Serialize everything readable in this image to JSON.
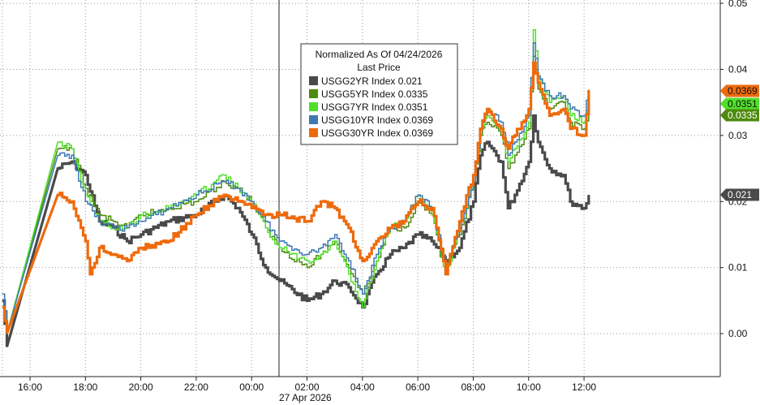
{
  "chart_data": {
    "type": "line",
    "title": "",
    "xlabel": "",
    "ylabel": "",
    "date_label": "27 Apr 2026",
    "x_ticks": [
      "16:00",
      "18:00",
      "20:00",
      "22:00",
      "00:00",
      "02:00",
      "04:00",
      "06:00",
      "08:00",
      "10:00",
      "12:00"
    ],
    "y_ticks": [
      "0.00",
      "0.01",
      "0.02",
      "0.03",
      "0.04",
      "0.05"
    ],
    "ylim": [
      -0.0065,
      0.0505
    ],
    "xlim": [
      "14:55",
      "27 Apr 16:55"
    ],
    "grid": true,
    "legend": {
      "placement": "top-center",
      "header1": "Normalized As Of 04/24/2026",
      "header2": "Last Price",
      "entries": [
        {
          "name": "USGG2YR Index",
          "value": "0.021",
          "color": "#4a4a4a"
        },
        {
          "name": "USGG5YR Index",
          "value": "0.0335",
          "color": "#4e8a0e"
        },
        {
          "name": "USGG7YR Index",
          "value": "0.0351",
          "color": "#4fe02a"
        },
        {
          "name": "USGG10YR Index",
          "value": "0.0369",
          "color": "#3f78b3"
        },
        {
          "name": "USGG30YR Index",
          "value": "0.0369",
          "color": "#ee6a0c"
        }
      ]
    },
    "last_price_tags": [
      {
        "text": "0.0369",
        "value": 0.0369,
        "color": "#ee6a0c",
        "text_color": "#111111"
      },
      {
        "text": "0.0351",
        "value": 0.0351,
        "color": "#4fe02a",
        "text_color": "#111111"
      },
      {
        "text": "0.0335",
        "value": 0.0335,
        "color": "#4e8a0e",
        "text_color": "#ffffff"
      },
      {
        "text": "0.021",
        "value": 0.021,
        "color": "#4a4a4a",
        "text_color": "#ffffff"
      }
    ],
    "series": [
      {
        "name": "USGG2YR Index",
        "color": "#4a4a4a",
        "points": [
          [
            "15:00",
            0.005
          ],
          [
            "15:10",
            -0.002
          ],
          [
            "17:00",
            0.025
          ],
          [
            "17:30",
            0.026
          ],
          [
            "18:00",
            0.024
          ],
          [
            "18:30",
            0.017
          ],
          [
            "19:00",
            0.016
          ],
          [
            "19:30",
            0.014
          ],
          [
            "20:00",
            0.015
          ],
          [
            "21:00",
            0.017
          ],
          [
            "22:00",
            0.018
          ],
          [
            "23:00",
            0.021
          ],
          [
            "23:30",
            0.019
          ],
          [
            "00:00",
            0.015
          ],
          [
            "00:30",
            0.01
          ],
          [
            "01:00",
            0.008
          ],
          [
            "02:00",
            0.005
          ],
          [
            "02:30",
            0.006
          ],
          [
            "03:00",
            0.008
          ],
          [
            "03:30",
            0.007
          ],
          [
            "04:00",
            0.004
          ],
          [
            "04:30",
            0.009
          ],
          [
            "05:00",
            0.012
          ],
          [
            "05:30",
            0.013
          ],
          [
            "06:00",
            0.015
          ],
          [
            "06:30",
            0.014
          ],
          [
            "07:00",
            0.011
          ],
          [
            "07:30",
            0.013
          ],
          [
            "08:00",
            0.02
          ],
          [
            "08:15",
            0.027
          ],
          [
            "08:30",
            0.029
          ],
          [
            "09:00",
            0.026
          ],
          [
            "09:15",
            0.019
          ],
          [
            "09:30",
            0.021
          ],
          [
            "10:00",
            0.026
          ],
          [
            "10:10",
            0.033
          ],
          [
            "10:20",
            0.029
          ],
          [
            "10:45",
            0.025
          ],
          [
            "11:15",
            0.024
          ],
          [
            "11:30",
            0.02
          ],
          [
            "12:00",
            0.019
          ],
          [
            "12:10",
            0.021
          ]
        ]
      },
      {
        "name": "USGG5YR Index",
        "color": "#4e8a0e",
        "points": [
          [
            "15:00",
            0.006
          ],
          [
            "15:10",
            0.0
          ],
          [
            "17:00",
            0.028
          ],
          [
            "17:30",
            0.028
          ],
          [
            "18:00",
            0.022
          ],
          [
            "18:30",
            0.018
          ],
          [
            "19:00",
            0.017
          ],
          [
            "19:30",
            0.016
          ],
          [
            "20:00",
            0.018
          ],
          [
            "21:00",
            0.019
          ],
          [
            "22:00",
            0.02
          ],
          [
            "23:00",
            0.023
          ],
          [
            "23:30",
            0.022
          ],
          [
            "00:00",
            0.02
          ],
          [
            "00:30",
            0.016
          ],
          [
            "01:00",
            0.013
          ],
          [
            "02:00",
            0.01
          ],
          [
            "02:30",
            0.012
          ],
          [
            "03:00",
            0.014
          ],
          [
            "03:30",
            0.01
          ],
          [
            "04:00",
            0.006
          ],
          [
            "04:30",
            0.011
          ],
          [
            "05:00",
            0.016
          ],
          [
            "05:30",
            0.016
          ],
          [
            "06:00",
            0.02
          ],
          [
            "06:30",
            0.018
          ],
          [
            "07:00",
            0.01
          ],
          [
            "07:30",
            0.015
          ],
          [
            "08:00",
            0.023
          ],
          [
            "08:15",
            0.03
          ],
          [
            "08:30",
            0.032
          ],
          [
            "09:00",
            0.03
          ],
          [
            "09:15",
            0.025
          ],
          [
            "09:30",
            0.027
          ],
          [
            "10:00",
            0.031
          ],
          [
            "10:10",
            0.042
          ],
          [
            "10:20",
            0.037
          ],
          [
            "10:45",
            0.034
          ],
          [
            "11:15",
            0.035
          ],
          [
            "11:30",
            0.032
          ],
          [
            "12:00",
            0.031
          ],
          [
            "12:10",
            0.0335
          ]
        ]
      },
      {
        "name": "USGG7YR Index",
        "color": "#4fe02a",
        "points": [
          [
            "15:00",
            0.006
          ],
          [
            "15:10",
            0.0
          ],
          [
            "17:00",
            0.029
          ],
          [
            "17:30",
            0.028
          ],
          [
            "18:00",
            0.021
          ],
          [
            "18:30",
            0.017
          ],
          [
            "19:00",
            0.016
          ],
          [
            "19:30",
            0.016
          ],
          [
            "20:00",
            0.018
          ],
          [
            "21:00",
            0.019
          ],
          [
            "22:00",
            0.021
          ],
          [
            "23:00",
            0.024
          ],
          [
            "23:30",
            0.022
          ],
          [
            "00:00",
            0.02
          ],
          [
            "00:30",
            0.016
          ],
          [
            "01:00",
            0.013
          ],
          [
            "02:00",
            0.011
          ],
          [
            "02:30",
            0.012
          ],
          [
            "03:00",
            0.014
          ],
          [
            "03:30",
            0.009
          ],
          [
            "04:00",
            0.004
          ],
          [
            "04:30",
            0.011
          ],
          [
            "05:00",
            0.016
          ],
          [
            "05:30",
            0.017
          ],
          [
            "06:00",
            0.021
          ],
          [
            "06:30",
            0.018
          ],
          [
            "07:00",
            0.009
          ],
          [
            "07:30",
            0.016
          ],
          [
            "08:00",
            0.023
          ],
          [
            "08:15",
            0.031
          ],
          [
            "08:30",
            0.033
          ],
          [
            "09:00",
            0.031
          ],
          [
            "09:15",
            0.026
          ],
          [
            "09:30",
            0.028
          ],
          [
            "10:00",
            0.032
          ],
          [
            "10:10",
            0.046
          ],
          [
            "10:20",
            0.039
          ],
          [
            "10:45",
            0.035
          ],
          [
            "11:15",
            0.036
          ],
          [
            "11:30",
            0.033
          ],
          [
            "12:00",
            0.032
          ],
          [
            "12:10",
            0.0351
          ]
        ]
      },
      {
        "name": "USGG10YR Index",
        "color": "#3f78b3",
        "points": [
          [
            "15:00",
            0.006
          ],
          [
            "15:10",
            0.0
          ],
          [
            "17:00",
            0.027
          ],
          [
            "17:30",
            0.027
          ],
          [
            "18:00",
            0.02
          ],
          [
            "18:30",
            0.017
          ],
          [
            "19:00",
            0.016
          ],
          [
            "19:30",
            0.016
          ],
          [
            "20:00",
            0.017
          ],
          [
            "21:00",
            0.019
          ],
          [
            "22:00",
            0.021
          ],
          [
            "23:00",
            0.023
          ],
          [
            "23:30",
            0.022
          ],
          [
            "00:00",
            0.02
          ],
          [
            "00:30",
            0.017
          ],
          [
            "01:00",
            0.014
          ],
          [
            "02:00",
            0.012
          ],
          [
            "02:30",
            0.013
          ],
          [
            "03:00",
            0.015
          ],
          [
            "03:30",
            0.011
          ],
          [
            "04:00",
            0.006
          ],
          [
            "04:30",
            0.012
          ],
          [
            "05:00",
            0.016
          ],
          [
            "05:30",
            0.017
          ],
          [
            "06:00",
            0.021
          ],
          [
            "06:30",
            0.019
          ],
          [
            "07:00",
            0.01
          ],
          [
            "07:30",
            0.016
          ],
          [
            "08:00",
            0.023
          ],
          [
            "08:15",
            0.031
          ],
          [
            "08:30",
            0.034
          ],
          [
            "09:00",
            0.032
          ],
          [
            "09:15",
            0.027
          ],
          [
            "09:30",
            0.029
          ],
          [
            "10:00",
            0.033
          ],
          [
            "10:10",
            0.044
          ],
          [
            "10:20",
            0.039
          ],
          [
            "10:45",
            0.036
          ],
          [
            "11:15",
            0.036
          ],
          [
            "11:30",
            0.034
          ],
          [
            "12:00",
            0.033
          ],
          [
            "12:10",
            0.0369
          ]
        ]
      },
      {
        "name": "USGG30YR Index",
        "color": "#ee6a0c",
        "points": [
          [
            "15:00",
            0.004
          ],
          [
            "15:10",
            0.0
          ],
          [
            "17:00",
            0.021
          ],
          [
            "17:30",
            0.02
          ],
          [
            "18:00",
            0.014
          ],
          [
            "18:10",
            0.009
          ],
          [
            "18:30",
            0.013
          ],
          [
            "19:00",
            0.012
          ],
          [
            "19:30",
            0.011
          ],
          [
            "20:00",
            0.013
          ],
          [
            "21:00",
            0.014
          ],
          [
            "22:00",
            0.018
          ],
          [
            "23:00",
            0.021
          ],
          [
            "23:30",
            0.02
          ],
          [
            "00:00",
            0.019
          ],
          [
            "00:30",
            0.018
          ],
          [
            "01:00",
            0.018
          ],
          [
            "02:00",
            0.017
          ],
          [
            "02:30",
            0.02
          ],
          [
            "03:00",
            0.019
          ],
          [
            "03:30",
            0.016
          ],
          [
            "04:00",
            0.011
          ],
          [
            "04:30",
            0.014
          ],
          [
            "05:00",
            0.016
          ],
          [
            "05:30",
            0.017
          ],
          [
            "06:00",
            0.02
          ],
          [
            "06:30",
            0.019
          ],
          [
            "07:00",
            0.009
          ],
          [
            "07:30",
            0.017
          ],
          [
            "08:00",
            0.024
          ],
          [
            "08:15",
            0.031
          ],
          [
            "08:30",
            0.034
          ],
          [
            "09:00",
            0.031
          ],
          [
            "09:15",
            0.028
          ],
          [
            "09:30",
            0.03
          ],
          [
            "10:00",
            0.034
          ],
          [
            "10:10",
            0.041
          ],
          [
            "10:20",
            0.038
          ],
          [
            "10:45",
            0.033
          ],
          [
            "11:15",
            0.034
          ],
          [
            "11:30",
            0.031
          ],
          [
            "12:00",
            0.03
          ],
          [
            "12:10",
            0.0369
          ]
        ]
      }
    ]
  }
}
